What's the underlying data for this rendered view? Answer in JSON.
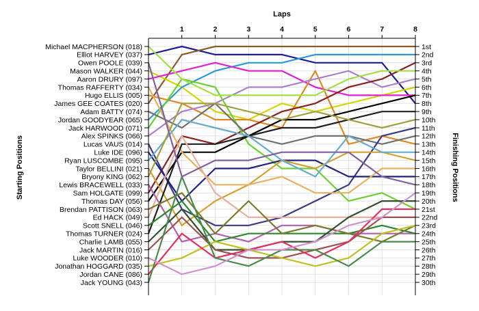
{
  "chart_data": {
    "type": "line",
    "title": "",
    "xlabel": "Laps",
    "ylabel_left": "Starting Positions",
    "ylabel_right": "Finishing Positions",
    "laps": [
      0,
      1,
      2,
      3,
      4,
      5,
      6,
      7,
      8
    ],
    "lap_tick_labels": [
      "1",
      "2",
      "3",
      "4",
      "5",
      "6",
      "7",
      "8"
    ],
    "positions_range": [
      1,
      30
    ],
    "grid": true,
    "starting_labels": [
      "Michael MACPHERSON (018)",
      "Elliot HARVEY (037)",
      "Owen POOLE (039)",
      "Mason WALKER (044)",
      "Aaron DRURY (097)",
      "Thomas RAFFERTY (034)",
      "Hugo ELLIS (005)",
      "James GEE COATES (020)",
      "Adam BATTY (074)",
      "Jordan GOODYEAR (065)",
      "Jack HARWOOD (071)",
      "Alex SPINKS (066)",
      "Lucas VAUS (014)",
      "Luke IDE (096)",
      "Ryan LUSCOMBE (095)",
      "Taylor BELLINI (021)",
      "Bryony KING (062)",
      "Lewis BRACEWELL (033)",
      "Sam HOLGATE (099)",
      "Thomas DAY (056)",
      "Brendan PATTISON (063)",
      "Ed HACK (049)",
      "Scott SNELL (046)",
      "Thomas TURNER (024)",
      "Charlie LAMB (055)",
      "Jack MARTIN (016)",
      "Luke WOODER (010)",
      "Jonathan HOGGARD (035)",
      "Jordan CANE (086)",
      "Jack YOUNG (043)"
    ],
    "finishing_labels": [
      "1st",
      "2nd",
      "3rd",
      "4th",
      "5th",
      "6th",
      "7th",
      "8th",
      "9th",
      "10th",
      "11th",
      "12th",
      "13th",
      "14th",
      "15th",
      "16th",
      "17th",
      "18th",
      "19th",
      "20th",
      "21st",
      "22nd",
      "23rd",
      "24th",
      "25th",
      "26th",
      "27th",
      "28th",
      "29th",
      "30th"
    ],
    "series": [
      {
        "color": "#1c1c9a",
        "positions": [
          2,
          1,
          2,
          2,
          2,
          3,
          3,
          3,
          8
        ]
      },
      {
        "color": "#8a5a2a",
        "positions": [
          8,
          2,
          1,
          1,
          1,
          1,
          1,
          1,
          1
        ]
      },
      {
        "color": "#d4d400",
        "positions": [
          4,
          6,
          9,
          10,
          8,
          9,
          8,
          7,
          6
        ]
      },
      {
        "color": "#2a9ad4",
        "positions": [
          10,
          6,
          4,
          3,
          3,
          2,
          2,
          2,
          2
        ]
      },
      {
        "color": "#e020d0",
        "positions": [
          5,
          4,
          3,
          4,
          4,
          6,
          7,
          7,
          7
        ]
      },
      {
        "color": "#e08820",
        "positions": [
          7,
          8,
          10,
          10,
          11,
          4,
          13,
          12,
          13
        ]
      },
      {
        "color": "#aa80cc",
        "positions": [
          12,
          9,
          8,
          6,
          6,
          5,
          4,
          6,
          5
        ]
      },
      {
        "color": "#8a2020",
        "positions": [
          19,
          12,
          13,
          11,
          9,
          8,
          6,
          5,
          3
        ]
      },
      {
        "color": "#6ad030",
        "positions": [
          11,
          5,
          6,
          13,
          16,
          16,
          20,
          19,
          21
        ]
      },
      {
        "color": "#000000",
        "positions": [
          20,
          14,
          14,
          12,
          10,
          10,
          9,
          8,
          7
        ]
      },
      {
        "color": "#707070",
        "positions": [
          9,
          11,
          8,
          12,
          13,
          12,
          12,
          13,
          12
        ]
      },
      {
        "color": "#3a3a8a",
        "positions": [
          13,
          21,
          23,
          23,
          22,
          20,
          18,
          12,
          11
        ]
      },
      {
        "color": "#222280",
        "positions": [
          14,
          20,
          16,
          16,
          15,
          15,
          17,
          17,
          17
        ]
      },
      {
        "color": "#d4a030",
        "positions": [
          16,
          23,
          20,
          18,
          15,
          16,
          14,
          14,
          15
        ]
      },
      {
        "color": "#e8b060",
        "positions": [
          6,
          14,
          18,
          18,
          17,
          19,
          19,
          16,
          16
        ]
      },
      {
        "color": "#202020",
        "positions": [
          24,
          13,
          13,
          12,
          11,
          11,
          10,
          9,
          9
        ]
      },
      {
        "color": "#66aacc",
        "positions": [
          15,
          10,
          11,
          12,
          15,
          17,
          12,
          14,
          14
        ]
      },
      {
        "color": "#a0a040",
        "positions": [
          17,
          8,
          8,
          9,
          10,
          9,
          10,
          11,
          10
        ]
      },
      {
        "color": "#e8b0a0",
        "positions": [
          22,
          12,
          19,
          22,
          22,
          22,
          22,
          22,
          22
        ]
      },
      {
        "color": "#b060b0",
        "positions": [
          18,
          25,
          24,
          25,
          23,
          23,
          24,
          24,
          24
        ]
      },
      {
        "color": "#2a8a2a",
        "positions": [
          23,
          20,
          25,
          24,
          24,
          24,
          24,
          23,
          24
        ]
      },
      {
        "color": "#7a7a2a",
        "positions": [
          21,
          19,
          24,
          20,
          24,
          23,
          24,
          25,
          23
        ]
      },
      {
        "color": "#305030",
        "positions": [
          25,
          21,
          26,
          26,
          25,
          25,
          22,
          20,
          20
        ]
      },
      {
        "color": "#a05050",
        "positions": [
          26,
          22,
          26,
          27,
          27,
          26,
          25,
          22,
          22
        ]
      },
      {
        "color": "#c0c020",
        "positions": [
          28,
          27,
          25,
          26,
          27,
          28,
          27,
          24,
          23
        ]
      },
      {
        "color": "#e03060",
        "positions": [
          29,
          24,
          27,
          26,
          25,
          27,
          25,
          21,
          21
        ]
      },
      {
        "color": "#4a8a4a",
        "positions": [
          30,
          17,
          27,
          28,
          26,
          26,
          28,
          25,
          25
        ]
      },
      {
        "color": "#d090d0",
        "positions": [
          27,
          29,
          28,
          26,
          26,
          25,
          23,
          22,
          19
        ]
      },
      {
        "color": "#8060a0",
        "positions": [
          3,
          17,
          15,
          15,
          14,
          14,
          14,
          17,
          18
        ]
      },
      {
        "color": "#a0e040",
        "positions": [
          1,
          5,
          7,
          7,
          7,
          7,
          5,
          4,
          4
        ]
      }
    ]
  }
}
